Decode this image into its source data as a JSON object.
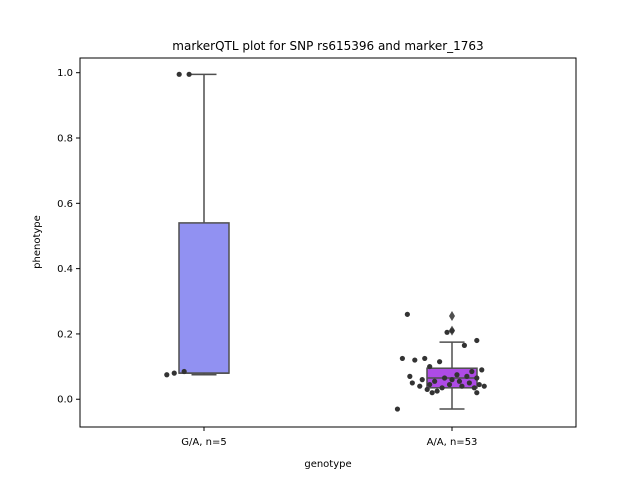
{
  "chart_data": {
    "type": "box",
    "title": "markerQTL plot for SNP rs615396 and marker_1763",
    "xlabel": "genotype",
    "ylabel": "phenotype",
    "ylim": [
      -0.085,
      1.045
    ],
    "yticks": [
      "0.0",
      "0.2",
      "0.4",
      "0.6",
      "0.8",
      "1.0"
    ],
    "ytick_values": [
      0.0,
      0.2,
      0.4,
      0.6,
      0.8,
      1.0
    ],
    "categories": [
      "G/A, n=5",
      "A/A, n=53"
    ],
    "boxes": [
      {
        "category": "G/A, n=5",
        "color": "#9191f2",
        "q1": 0.08,
        "median": 0.08,
        "q3": 0.54,
        "whisker_low": 0.075,
        "whisker_high": 0.995,
        "outliers": [],
        "points": [
          {
            "x": -0.1,
            "y": 0.995
          },
          {
            "x": -0.06,
            "y": 0.995
          },
          {
            "x": -0.15,
            "y": 0.075
          },
          {
            "x": -0.12,
            "y": 0.08
          },
          {
            "x": -0.08,
            "y": 0.085
          }
        ]
      },
      {
        "category": "A/A, n=53",
        "color": "#ae4be6",
        "q1": 0.035,
        "median": 0.065,
        "q3": 0.095,
        "whisker_low": -0.03,
        "whisker_high": 0.175,
        "outliers": [
          0.21,
          0.255
        ],
        "points": [
          {
            "x": -0.18,
            "y": 0.26
          },
          {
            "x": 0.0,
            "y": 0.21
          },
          {
            "x": -0.02,
            "y": 0.205
          },
          {
            "x": 0.05,
            "y": 0.165
          },
          {
            "x": 0.1,
            "y": 0.18
          },
          {
            "x": -0.15,
            "y": 0.12
          },
          {
            "x": -0.05,
            "y": 0.115
          },
          {
            "x": -0.11,
            "y": 0.125
          },
          {
            "x": -0.2,
            "y": 0.125
          },
          {
            "x": -0.09,
            "y": 0.1
          },
          {
            "x": 0.12,
            "y": 0.09
          },
          {
            "x": 0.08,
            "y": 0.085
          },
          {
            "x": -0.17,
            "y": 0.07
          },
          {
            "x": 0.02,
            "y": 0.075
          },
          {
            "x": -0.03,
            "y": 0.065
          },
          {
            "x": 0.06,
            "y": 0.07
          },
          {
            "x": -0.12,
            "y": 0.06
          },
          {
            "x": 0.1,
            "y": 0.065
          },
          {
            "x": 0.0,
            "y": 0.06
          },
          {
            "x": -0.07,
            "y": 0.055
          },
          {
            "x": 0.03,
            "y": 0.055
          },
          {
            "x": -0.16,
            "y": 0.05
          },
          {
            "x": 0.11,
            "y": 0.045
          },
          {
            "x": 0.07,
            "y": 0.05
          },
          {
            "x": -0.01,
            "y": 0.045
          },
          {
            "x": -0.09,
            "y": 0.045
          },
          {
            "x": 0.04,
            "y": 0.04
          },
          {
            "x": -0.13,
            "y": 0.04
          },
          {
            "x": 0.13,
            "y": 0.04
          },
          {
            "x": -0.04,
            "y": 0.035
          },
          {
            "x": 0.09,
            "y": 0.035
          },
          {
            "x": -0.1,
            "y": 0.03
          },
          {
            "x": -0.06,
            "y": 0.025
          },
          {
            "x": -0.08,
            "y": 0.02
          },
          {
            "x": 0.1,
            "y": 0.02
          },
          {
            "x": -0.22,
            "y": -0.03
          }
        ]
      }
    ],
    "grid": false,
    "colors": {
      "axis": "#000000",
      "box_edge": "#4f4f4f",
      "point": "#333333"
    }
  }
}
